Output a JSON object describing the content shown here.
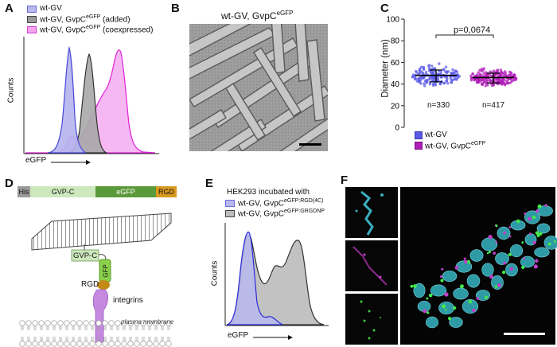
{
  "panels": {
    "A": "A",
    "B": "B",
    "C": "C",
    "D": "D",
    "E": "E",
    "F": "F"
  },
  "panelA": {
    "legend": [
      "wt-GV",
      "wt-GV, GvpC",
      "wt-GV, GvpC",
      "eGFP",
      "(added)",
      "(coexpressed)"
    ],
    "legend_items": [
      {
        "label": "wt-GV",
        "sup": "",
        "suffix": "",
        "color": "#b8b8ec"
      },
      {
        "label": "wt-GV, GvpC",
        "sup": "eGFP",
        "suffix": " (added)",
        "color": "#9a9a9a"
      },
      {
        "label": "wt-GV, GvpC",
        "sup": "eGFP",
        "suffix": " (coexpressed)",
        "color": "#f4a6ee"
      }
    ],
    "ylabel": "Counts",
    "xlabel": "eGFP"
  },
  "panelB": {
    "title": "wt-GV, GvpC",
    "title_sup": "eGFP"
  },
  "panelC": {
    "chart_data": {
      "type": "scatter",
      "ylabel": "Diameter (nm)",
      "ylim": [
        0,
        100
      ],
      "yticks": [
        0,
        20,
        40,
        60,
        80,
        100
      ],
      "groups": [
        {
          "name": "wt-GV",
          "n_label": "n=330",
          "median": 48,
          "q1": 42,
          "q3": 53,
          "min": 26,
          "max": 72,
          "color": "#5b5be8"
        },
        {
          "name": "wt-GV, GvpC",
          "sup": "eGFP",
          "n_label": "n=417",
          "median": 46,
          "q1": 41,
          "q3": 50,
          "min": 30,
          "max": 68,
          "color": "#b01eb8"
        }
      ],
      "annotation": "p=0,0674"
    },
    "legend_items": [
      {
        "label": "wt-GV",
        "sup": "",
        "color": "#5b5be8"
      },
      {
        "label": "wt-GV, GvpC",
        "sup": "eGFP",
        "color": "#b01eb8"
      }
    ]
  },
  "panelD": {
    "segments": [
      {
        "label": "His",
        "color": "#9a9a9a"
      },
      {
        "label": "GVP-C",
        "color": "#cde8bd"
      },
      {
        "label": "eGFP",
        "color": "#5a9a3a"
      },
      {
        "label": "RGD",
        "color": "#d89a20"
      }
    ],
    "labels": {
      "gvpc": "GVP-C",
      "gfp": "GFP",
      "rgd": "RGD",
      "integrins": "integrins",
      "membrane": "plasma membrane"
    }
  },
  "panelE": {
    "title": "HEK293 incubated with",
    "legend_items": [
      {
        "label": "wt-GV, GvpC",
        "sup": "eGFP:RGD(4C)",
        "color": "#b8b8ec"
      },
      {
        "label": "wt-GV, GvpC",
        "sup": "eGFP:GRGDNP",
        "color": "#bcbcbc"
      }
    ],
    "ylabel": "Counts",
    "xlabel": "eGFP"
  }
}
